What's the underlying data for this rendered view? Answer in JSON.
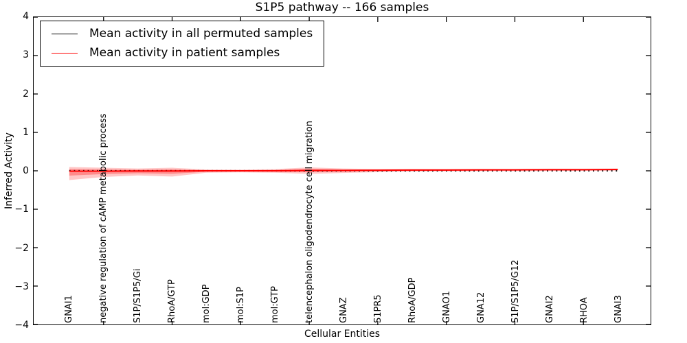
{
  "title": "S1P5 pathway -- 166 samples",
  "legend": {
    "items": [
      {
        "label": "Mean activity in all permuted samples",
        "color": "#000000"
      },
      {
        "label": "Mean activity in patient samples",
        "color": "#ff0000"
      }
    ]
  },
  "axes": {
    "xlabel": "Cellular Entities",
    "ylabel": "Inferred Activity",
    "yticks": [
      {
        "label": "4",
        "value": 4
      },
      {
        "label": "3",
        "value": 3
      },
      {
        "label": "2",
        "value": 2
      },
      {
        "label": "1",
        "value": 1
      },
      {
        "label": "0",
        "value": 0
      },
      {
        "label": "−1",
        "value": -1
      },
      {
        "label": "−2",
        "value": -2
      },
      {
        "label": "−3",
        "value": -3
      },
      {
        "label": "−4",
        "value": -4
      }
    ]
  },
  "chart_data": {
    "type": "line",
    "title": "S1P5 pathway -- 166 samples",
    "xlabel": "Cellular Entities",
    "ylabel": "Inferred Activity",
    "ylim": [
      -4,
      4
    ],
    "grid": false,
    "legend_position": "upper left",
    "categories": [
      "GNAI1",
      "negative regulation of cAMP metabolic process",
      "S1P/S1P5/Gi",
      "RhoA/GTP",
      "mol:GDP",
      "mol:S1P",
      "mol:GTP",
      "telencephalon oligodendrocyte cell migration",
      "GNAZ",
      "S1PR5",
      "RhoA/GDP",
      "GNAO1",
      "GNA12",
      "S1P/S1P5/G12",
      "GNAI2",
      "RHOA",
      "GNAI3"
    ],
    "series": [
      {
        "name": "Mean activity in all permuted samples",
        "color": "#000000",
        "style": "dotted",
        "values": [
          0,
          0,
          0,
          0,
          0,
          0,
          0,
          0,
          0,
          0,
          0,
          0,
          0,
          0,
          0,
          0,
          0
        ]
      },
      {
        "name": "Mean activity in patient samples",
        "color": "#ff0000",
        "style": "solid",
        "values": [
          -0.01,
          -0.01,
          -0.005,
          -0.005,
          0.0,
          0.0,
          0.0,
          0.01,
          0.01,
          0.015,
          0.02,
          0.02,
          0.025,
          0.025,
          0.03,
          0.03,
          0.035
        ]
      }
    ],
    "band": {
      "name": "patient sample activity spread",
      "color": "#ff0000",
      "alpha": 0.25,
      "upper": [
        0.1,
        0.08,
        0.06,
        0.08,
        0.035,
        0.03,
        0.045,
        0.09,
        0.06,
        0.045,
        0.05,
        0.05,
        0.05,
        0.05,
        0.055,
        0.055,
        0.06
      ],
      "lower": [
        -0.24,
        -0.16,
        -0.12,
        -0.15,
        -0.05,
        -0.04,
        -0.05,
        -0.08,
        -0.055,
        -0.035,
        -0.02,
        -0.015,
        -0.01,
        -0.01,
        -0.005,
        0.0,
        0.005
      ]
    },
    "x_major_tick_indices": [
      1,
      3,
      5,
      7,
      9,
      11,
      13,
      15
    ]
  }
}
